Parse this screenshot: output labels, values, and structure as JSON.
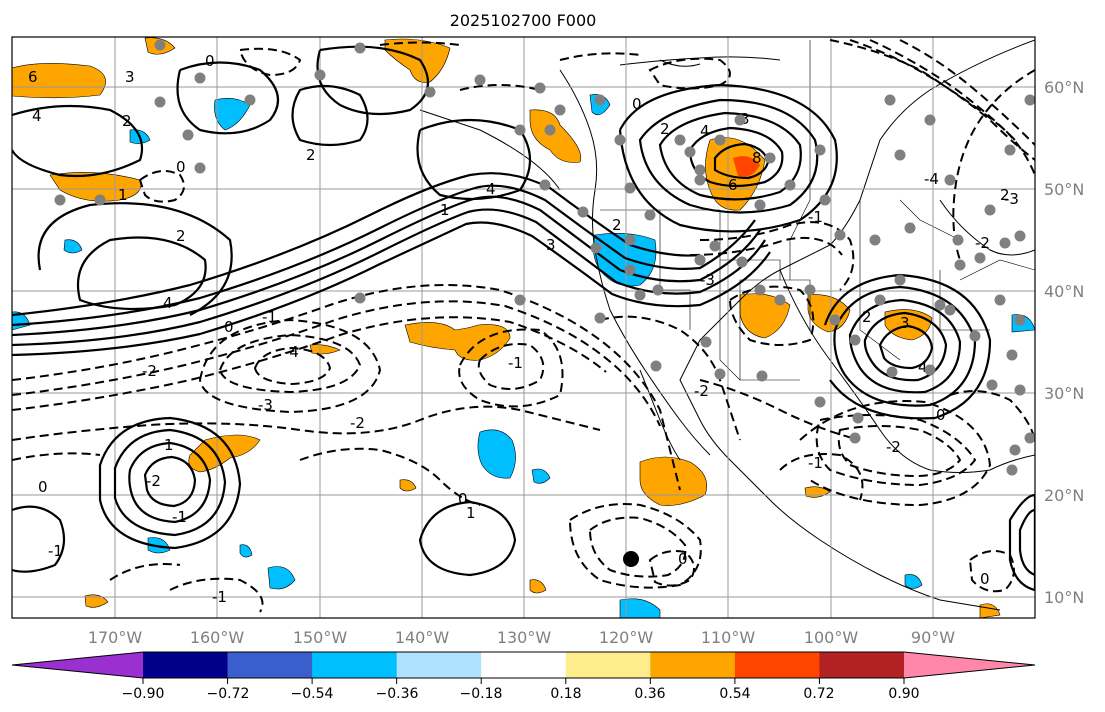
{
  "title": "2025102700 F000",
  "axes": {
    "lon_ticks": [
      "170°W",
      "160°W",
      "150°W",
      "140°W",
      "130°W",
      "120°W",
      "110°W",
      "100°W",
      "90°W"
    ],
    "lat_ticks": [
      "60°N",
      "50°N",
      "40°N",
      "30°N",
      "20°N",
      "10°N"
    ],
    "lon_range_deg": [
      -177,
      -77
    ],
    "lat_range_deg": [
      8,
      65
    ]
  },
  "colorbar": {
    "labels": [
      "−0.90",
      "−0.72",
      "−0.54",
      "−0.36",
      "−0.18",
      "0.18",
      "0.36",
      "0.54",
      "0.72",
      "0.90"
    ],
    "colors": [
      "#9b30d0",
      "#00008b",
      "#3a5fcd",
      "#00bfff",
      "#b0e2ff",
      "#ffffff",
      "#ffec8b",
      "#ffa500",
      "#ff4500",
      "#b22222",
      "#ff88aa"
    ]
  },
  "contour_labels": [
    "6",
    "4",
    "3",
    "2",
    "2",
    "1",
    "0",
    "0",
    "-1",
    "-2",
    "-3",
    "-4",
    "4",
    "3",
    "2",
    "1",
    "0",
    "4",
    "3",
    "2",
    "8",
    "6",
    "4",
    "2",
    "0",
    "-2",
    "-3",
    "-4",
    "-1",
    "-2",
    "2",
    "3",
    "4",
    "0",
    "-2",
    "-3",
    "-1",
    "-2",
    "-2",
    "-1",
    "1",
    "-1",
    "0",
    "-1",
    "0",
    "-1",
    "0",
    "1",
    "2",
    "0"
  ],
  "legend": {
    "marker_desc": ""
  }
}
